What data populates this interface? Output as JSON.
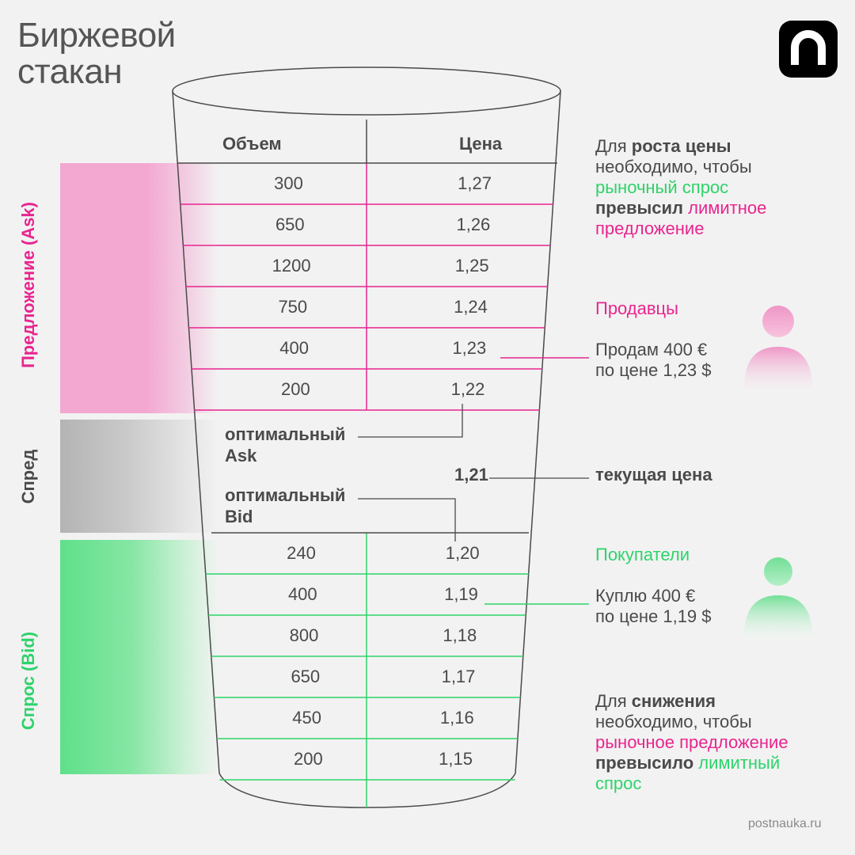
{
  "title_line1": "Биржевой",
  "title_line2": "стакан",
  "side_labels": {
    "ask": "Предложение (Ask)",
    "spread": "Спред",
    "bid": "Спрос (Bid)"
  },
  "headers": {
    "volume": "Объем",
    "price": "Цена"
  },
  "ask_rows": [
    {
      "volume": "300",
      "price": "1,27"
    },
    {
      "volume": "650",
      "price": "1,26"
    },
    {
      "volume": "1200",
      "price": "1,25"
    },
    {
      "volume": "750",
      "price": "1,24"
    },
    {
      "volume": "400",
      "price": "1,23"
    },
    {
      "volume": "200",
      "price": "1,22"
    }
  ],
  "bid_rows": [
    {
      "volume": "240",
      "price": "1,20"
    },
    {
      "volume": "400",
      "price": "1,19"
    },
    {
      "volume": "800",
      "price": "1,18"
    },
    {
      "volume": "650",
      "price": "1,17"
    },
    {
      "volume": "450",
      "price": "1,16"
    },
    {
      "volume": "200",
      "price": "1,15"
    }
  ],
  "spread": {
    "ask_label_1": "оптимальный",
    "ask_label_2": "Ask",
    "bid_label_1": "оптимальный",
    "bid_label_2": "Bid",
    "current_price": "1,21",
    "current_price_label": "текущая цена"
  },
  "top_note": {
    "p1": "Для ",
    "p2": "роста цены",
    "p3": "необходимо, чтобы",
    "p4": "рыночный спрос",
    "p5": "превысил",
    "p6": " лимитное",
    "p7": "предложение"
  },
  "sellers": {
    "label": "Продавцы",
    "line1": "Продам 400 €",
    "line2": "по цене 1,23 $"
  },
  "buyers": {
    "label": "Покупатели",
    "line1": "Куплю 400 €",
    "line2": "по цене 1,19 $"
  },
  "bottom_note": {
    "p1": "Для ",
    "p2": "снижения",
    "p3": "необходимо, чтобы",
    "p4": "рыночное предложение",
    "p5": "превысило",
    "p6": " лимитный",
    "p7": "спрос"
  },
  "watermark": "postnauka.ru",
  "colors": {
    "ask": "#e8258f",
    "bid": "#2ed36a",
    "outline": "#4a4a4a",
    "ask_band": "#f3a8d2",
    "bid_band": "#5fe08a",
    "spread_band": "#b4b4b4"
  }
}
